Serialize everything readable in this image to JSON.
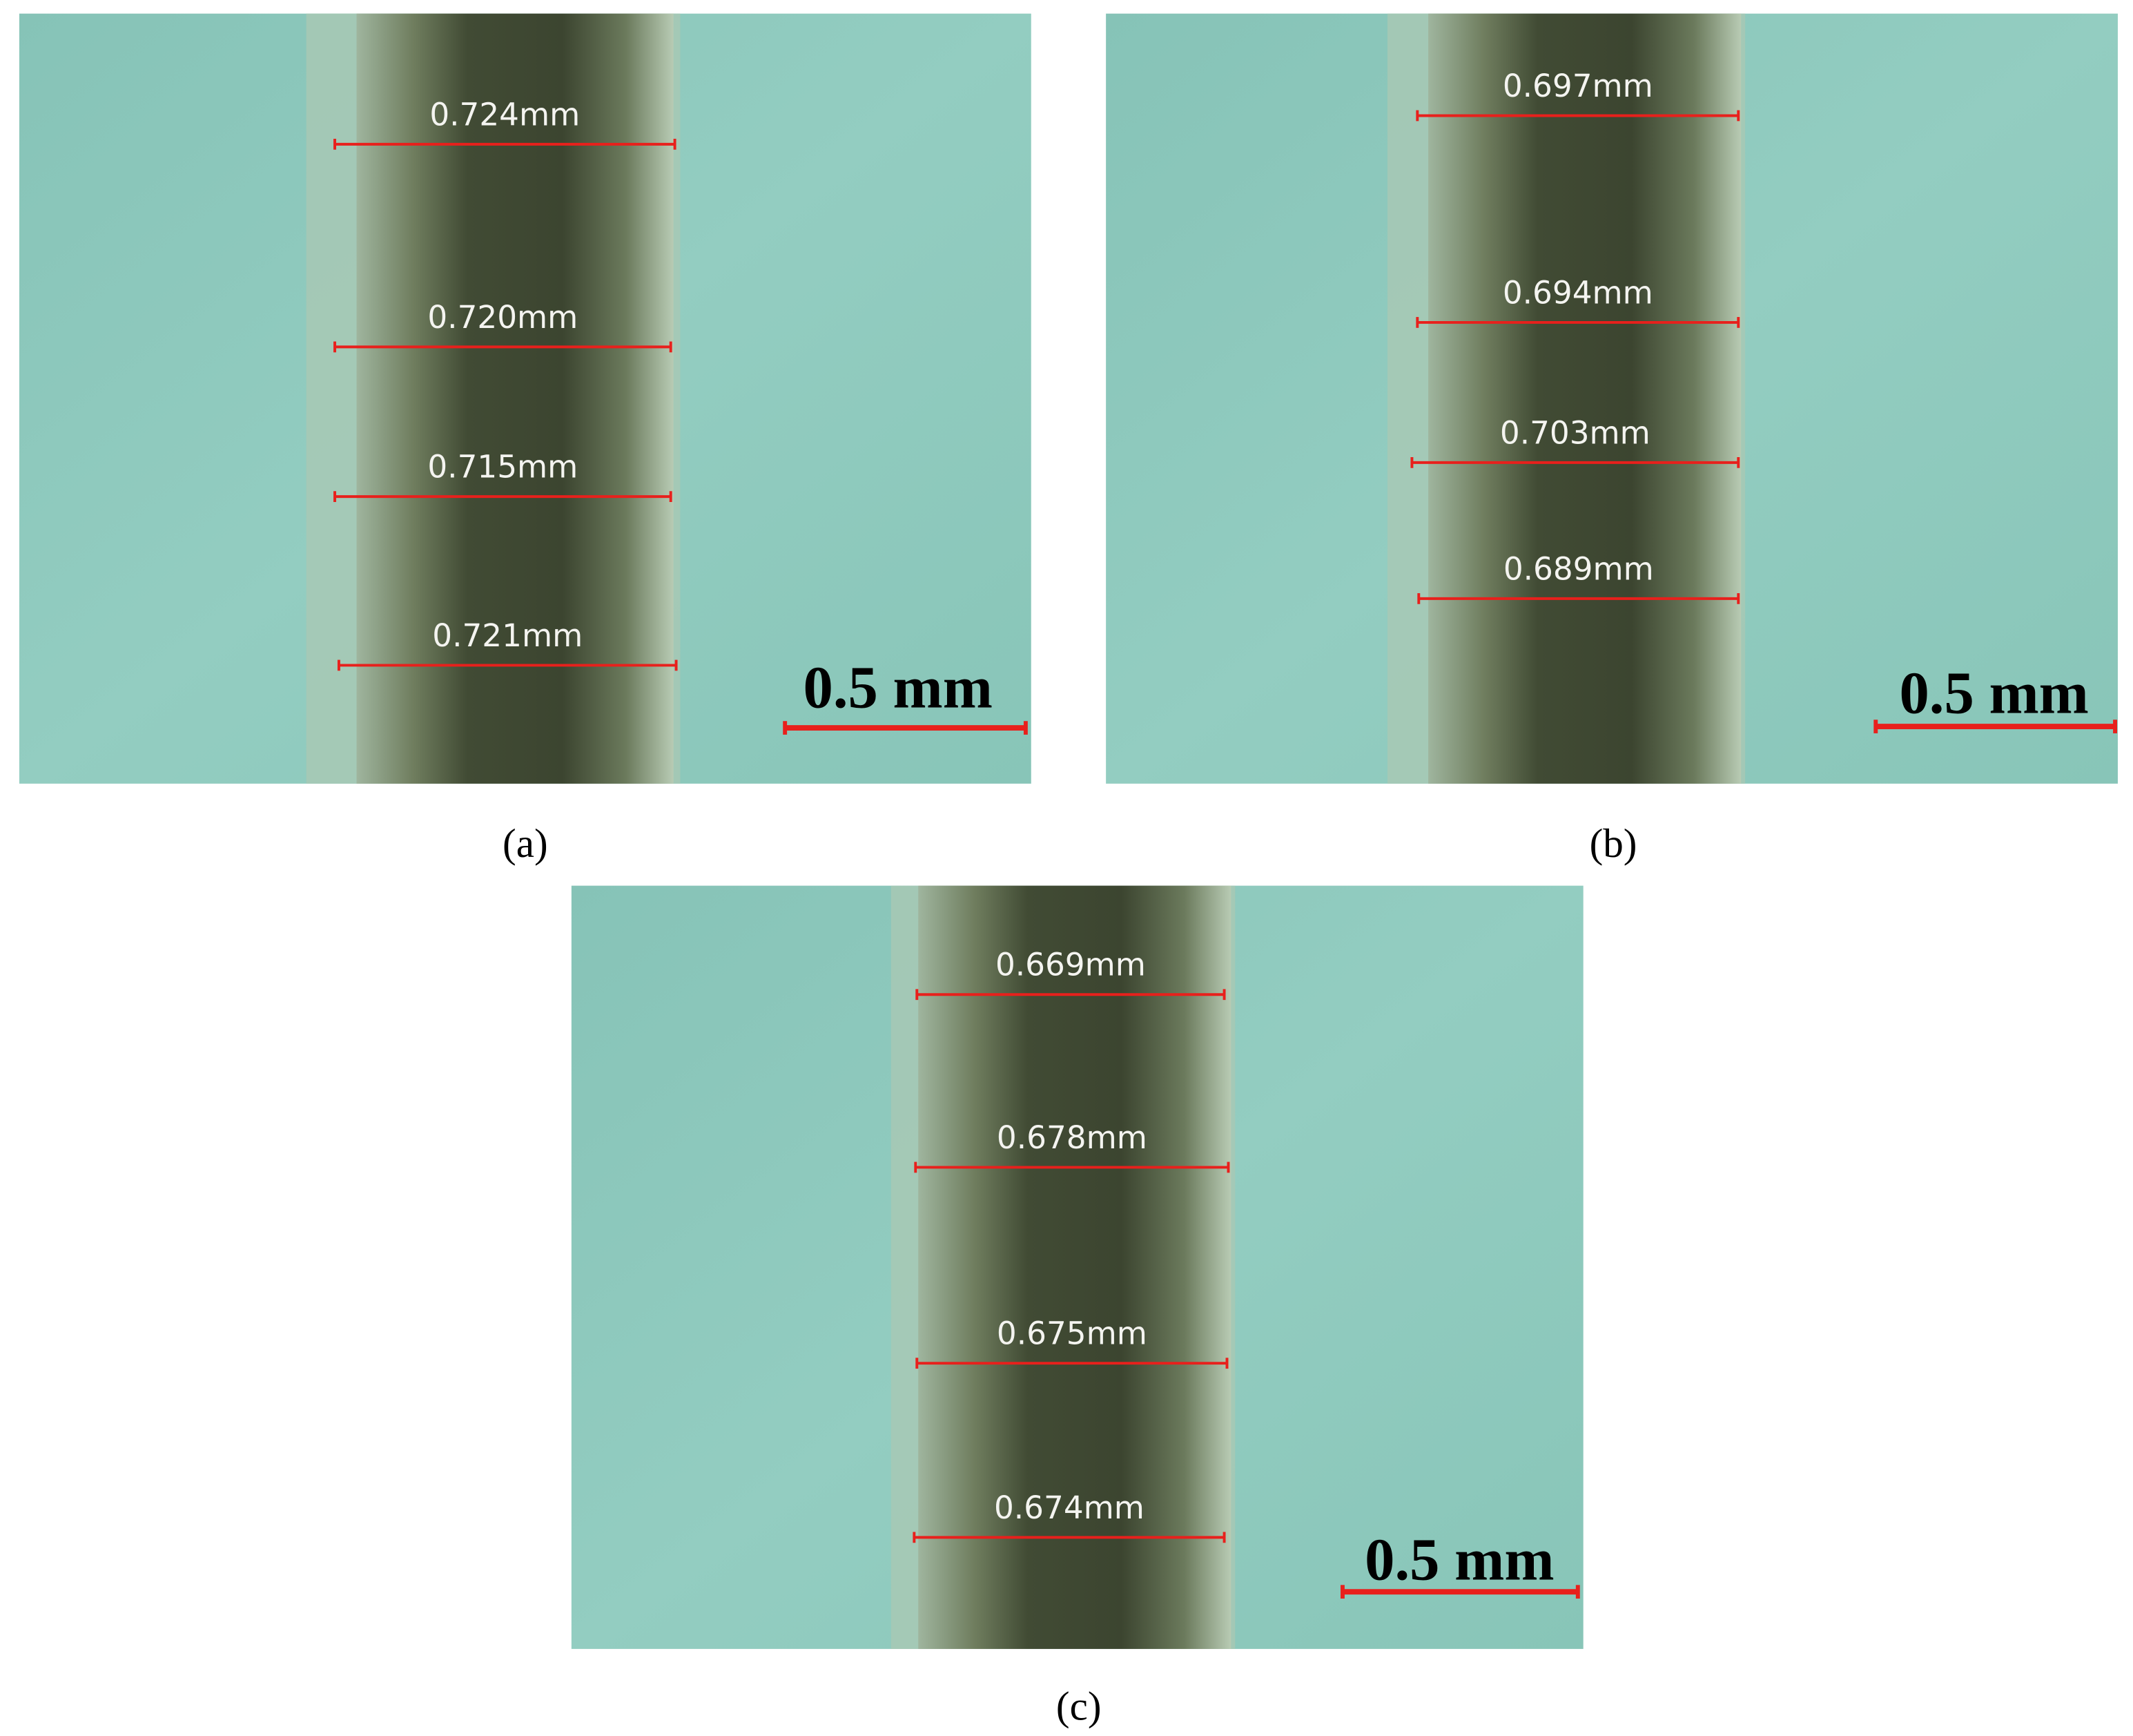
{
  "panels": [
    {
      "label": "(a)",
      "measurements": [
        "0.724mm",
        "0.720mm",
        "0.715mm",
        "0.721mm"
      ],
      "scale_bar": "0.5 mm"
    },
    {
      "label": "(b)",
      "measurements": [
        "0.697mm",
        "0.694mm",
        "0.703mm",
        "0.689mm"
      ],
      "scale_bar": "0.5 mm"
    },
    {
      "label": "(c)",
      "measurements": [
        "0.669mm",
        "0.678mm",
        "0.675mm",
        "0.674mm"
      ],
      "scale_bar": "0.5 mm"
    }
  ]
}
